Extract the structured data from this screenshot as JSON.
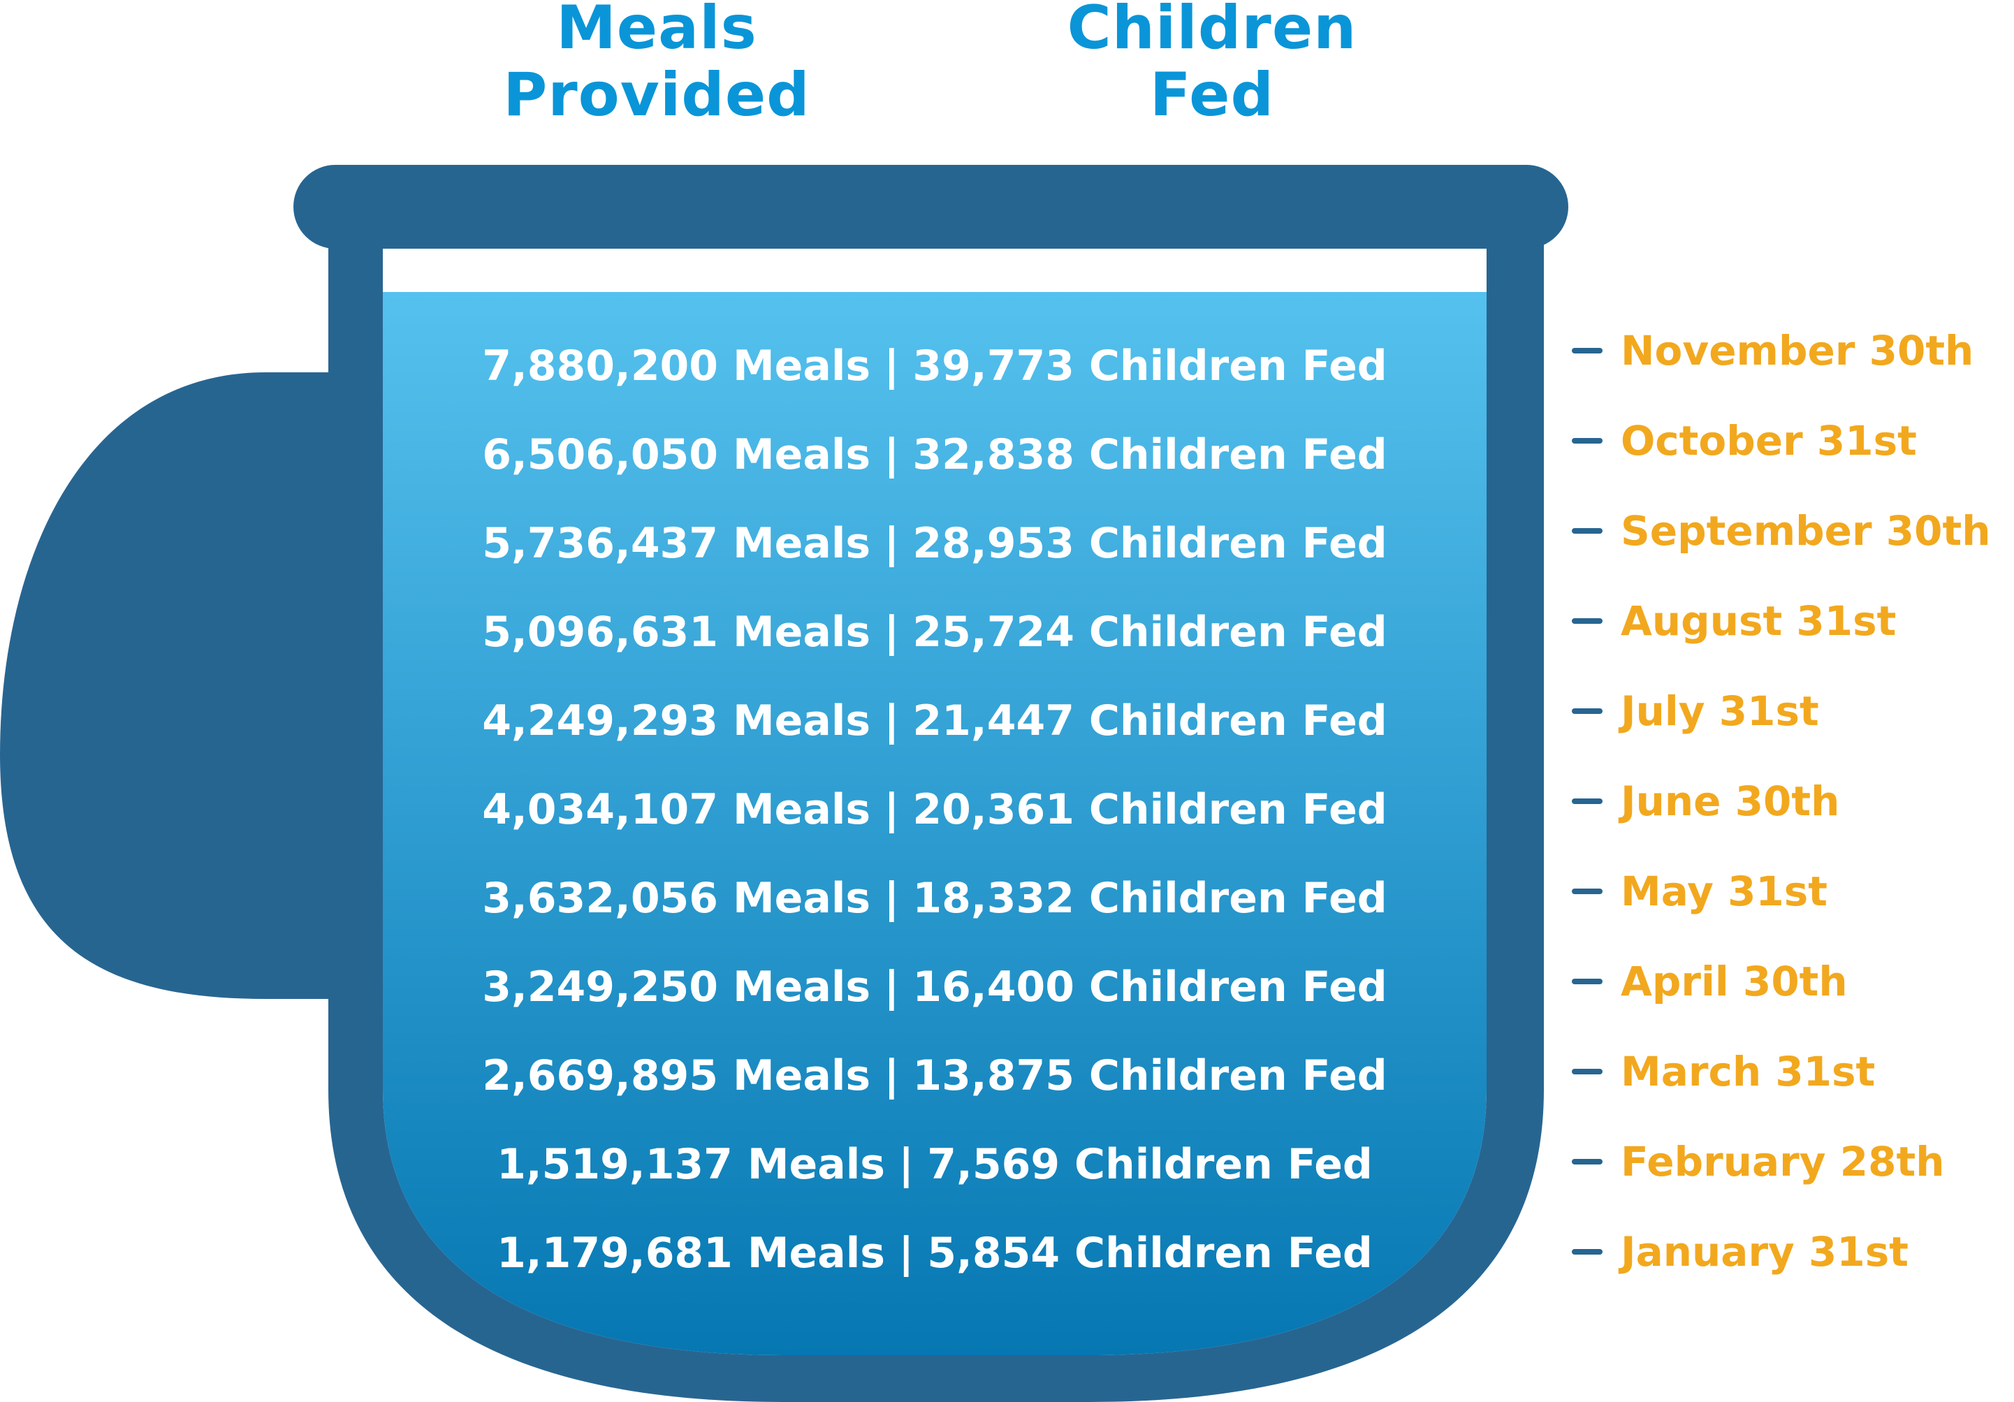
{
  "headers": {
    "meals": [
      "Meals",
      "Provided"
    ],
    "children": [
      "Children",
      "Fed"
    ]
  },
  "rows": [
    {
      "meals": "7,880,200 Meals",
      "children": "39,773 Children Fed",
      "date": "November 30th"
    },
    {
      "meals": "6,506,050 Meals",
      "children": "32,838 Children Fed",
      "date": "October 31st"
    },
    {
      "meals": "5,736,437 Meals",
      "children": "28,953 Children Fed",
      "date": "September 30th"
    },
    {
      "meals": "5,096,631 Meals",
      "children": "25,724 Children Fed",
      "date": "August 31st"
    },
    {
      "meals": "4,249,293 Meals",
      "children": "21,447 Children Fed",
      "date": "July 31st"
    },
    {
      "meals": "4,034,107 Meals",
      "children": "20,361 Children Fed",
      "date": "June 30th"
    },
    {
      "meals": "3,632,056 Meals",
      "children": "18,332 Children Fed",
      "date": "May 31st"
    },
    {
      "meals": "3,249,250 Meals",
      "children": "16,400 Children Fed",
      "date": "April 30th"
    },
    {
      "meals": "2,669,895 Meals",
      "children": "13,875 Children Fed",
      "date": "March 31st"
    },
    {
      "meals": "1,519,137 Meals",
      "children": "7,569 Children Fed",
      "date": "February 28th"
    },
    {
      "meals": "1,179,681 Meals",
      "children": "5,854 Children Fed",
      "date": "January 31st"
    }
  ],
  "separator": "|",
  "colors": {
    "mug": "#276591",
    "fill_top": "#55c1ee",
    "fill_bottom": "#0677b2",
    "header": "#0a95d8",
    "date": "#f2a81e",
    "row_text": "#ffffff"
  },
  "icons": {
    "mug": "mug-icon"
  }
}
